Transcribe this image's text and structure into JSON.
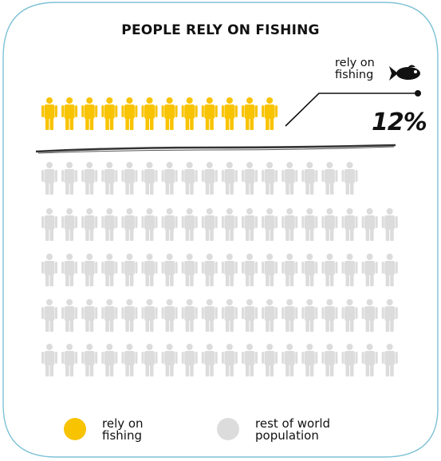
{
  "chart_data": {
    "type": "pictogram",
    "title": "PEOPLE RELY ON FISHING",
    "callout": {
      "label_line1": "rely on",
      "label_line2": "fishing",
      "value": "12%",
      "icon": "fish-icon"
    },
    "categories": [
      "rely on fishing",
      "rest of world population"
    ],
    "values": [
      12,
      88
    ],
    "unit": "%",
    "total_icons": 100,
    "colors": {
      "rely_on_fishing": "#F8C300",
      "rest_of_world": "#DCDCDC"
    },
    "legend": {
      "placement": "bottom",
      "items": [
        {
          "line1": "rely on",
          "line2": "fishing",
          "color": "#F8C300"
        },
        {
          "line1": "rest of world",
          "line2": "population",
          "color": "#DCDCDC"
        }
      ]
    }
  }
}
